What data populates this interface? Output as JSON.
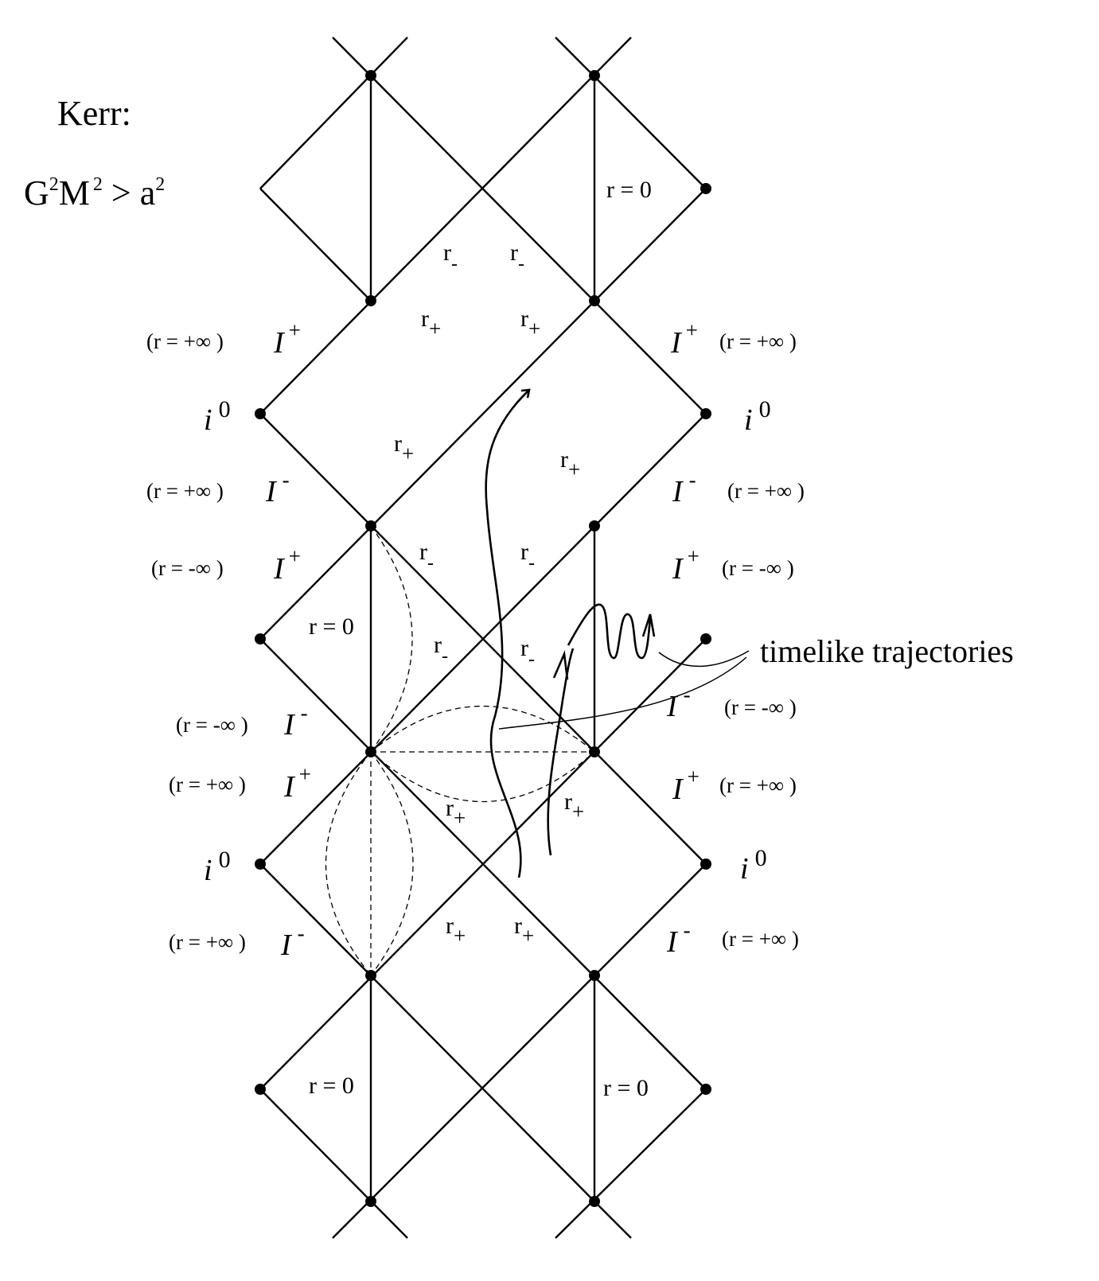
{
  "title": {
    "name": "Kerr:",
    "condition_parts": [
      "G",
      "2",
      "M",
      "2",
      " > a",
      "2"
    ]
  },
  "labels": {
    "r_zero": "r = 0",
    "r_minus_base": "r",
    "r_minus_sub": "-",
    "r_plus_base": "r",
    "r_plus_sub": "+",
    "scri": "I",
    "scri_plus_sup": "+",
    "scri_minus_sup": "-",
    "spatial_inf": "i",
    "spatial_inf_sup": "0",
    "r_pos_inf": "(r = +∞ )",
    "r_neg_inf": "(r = -∞ )",
    "timelike": "timelike trajectories"
  },
  "colors": {
    "ink": "#000000",
    "background": "#ffffff"
  }
}
